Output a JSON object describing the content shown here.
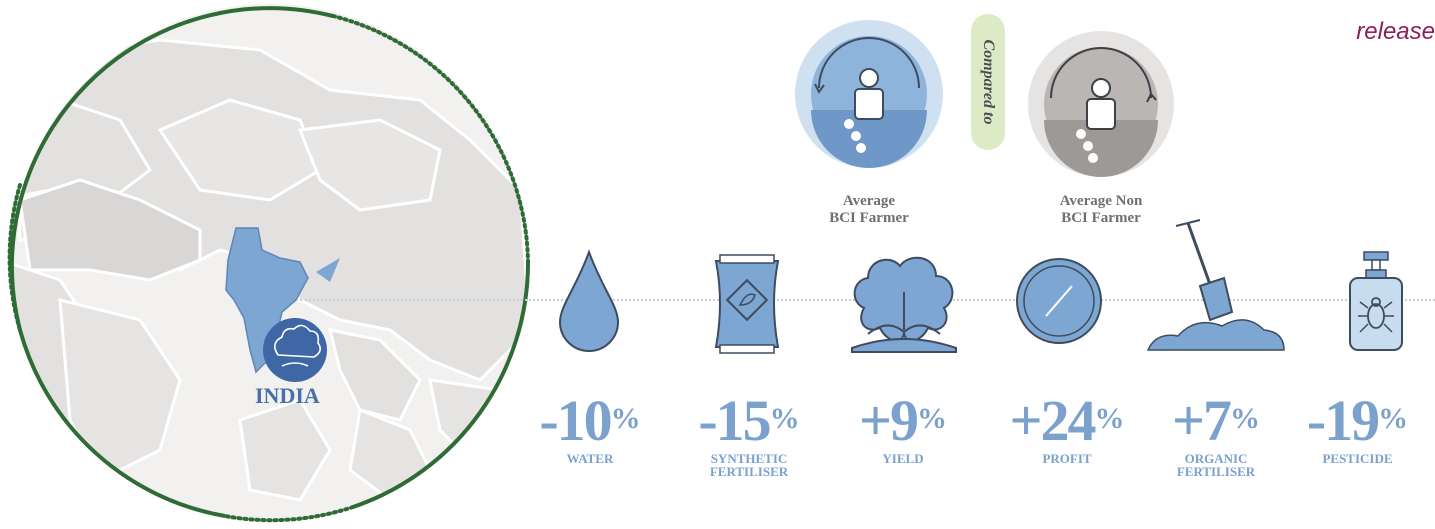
{
  "header": {
    "release_text": "release"
  },
  "map": {
    "country_label": "INDIA"
  },
  "comparison": {
    "bci_farmer": {
      "line1": "Average",
      "line2": "BCI Farmer"
    },
    "compared_to": "Compared to",
    "non_bci_farmer": {
      "line1": "Average Non",
      "line2": "BCI Farmer"
    }
  },
  "stats": [
    {
      "value": "-10",
      "unit": "%",
      "label_lines": [
        "WATER"
      ],
      "icon": "water-drop-icon"
    },
    {
      "value": "-15",
      "unit": "%",
      "label_lines": [
        "SYNTHETIC",
        "FERTILISER"
      ],
      "icon": "fertiliser-bag-icon"
    },
    {
      "value": "+9",
      "unit": "%",
      "label_lines": [
        "YIELD"
      ],
      "icon": "cotton-boll-icon"
    },
    {
      "value": "+24",
      "unit": "%",
      "label_lines": [
        "PROFIT"
      ],
      "icon": "coin-icon"
    },
    {
      "value": "+7",
      "unit": "%",
      "label_lines": [
        "ORGANIC",
        "FERTILISER"
      ],
      "icon": "shovel-icon"
    },
    {
      "value": "-19",
      "unit": "%",
      "label_lines": [
        "PESTICIDE"
      ],
      "icon": "pesticide-bottle-icon"
    }
  ],
  "colors": {
    "accent_blue": "#7ba1cc",
    "map_border": "#2f6b35",
    "release_text": "#8c1d5e",
    "compared_badge": "#dcebc6"
  }
}
